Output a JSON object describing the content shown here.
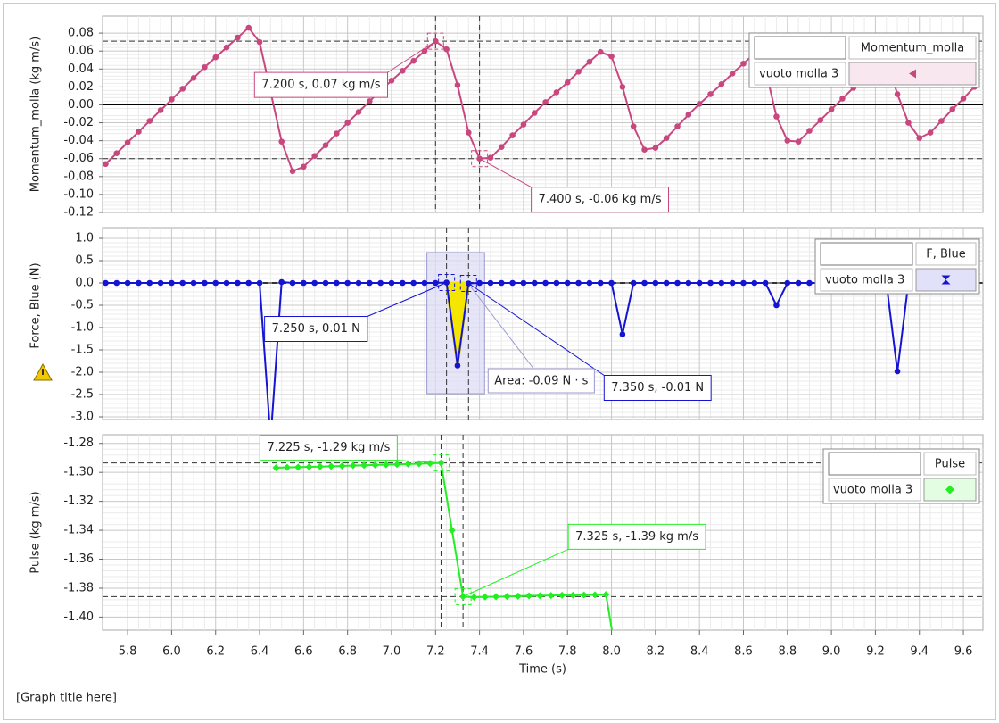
{
  "chart_data": [
    {
      "type": "line",
      "y_label": "Momentum_molla (kg m/s)",
      "legend_group": "vuoto molla 3",
      "xlim": [
        5.686,
        9.689
      ],
      "ylim": [
        -0.12,
        0.099
      ],
      "grid": true,
      "zero_line": true,
      "yticks": [
        -0.12,
        {
          "value": -0.1,
          "label": "-0.10"
        },
        -0.08,
        -0.06,
        -0.04,
        -0.02,
        {
          "value": 0,
          "label": "0.00"
        },
        0.02,
        0.04,
        0.06,
        0.08
      ],
      "x": [
        5.7,
        5.75,
        5.8,
        5.85,
        5.9,
        5.95,
        6.0,
        6.05,
        6.1,
        6.15,
        6.2,
        6.25,
        6.3,
        6.35,
        6.4,
        6.5,
        6.55,
        6.6,
        6.65,
        6.7,
        6.75,
        6.8,
        6.85,
        6.9,
        6.95,
        7.0,
        7.05,
        7.1,
        7.15,
        7.2,
        7.25,
        7.3,
        7.35,
        7.4,
        7.45,
        7.5,
        7.55,
        7.6,
        7.65,
        7.7,
        7.75,
        7.8,
        7.85,
        7.9,
        7.95,
        8.0,
        8.05,
        8.1,
        8.15,
        8.2,
        8.25,
        8.3,
        8.35,
        8.4,
        8.45,
        8.5,
        8.55,
        8.6,
        8.65,
        8.7,
        8.75,
        8.8,
        8.85,
        8.9,
        8.95,
        9.0,
        9.05,
        9.1,
        9.15,
        9.2,
        9.25,
        9.3,
        9.35,
        9.4,
        9.45,
        9.5,
        9.55,
        9.6,
        9.65
      ],
      "series": [
        {
          "name": "Momentum_molla",
          "color": "#c8477f",
          "marker": "circle",
          "values": [
            -0.066,
            -0.054,
            -0.042,
            -0.03,
            -0.018,
            -0.006,
            0.006,
            0.018,
            0.03,
            0.042,
            0.053,
            0.064,
            0.075,
            0.086,
            0.07,
            -0.041,
            -0.074,
            -0.069,
            -0.057,
            -0.045,
            -0.032,
            -0.02,
            -0.008,
            0.004,
            0.016,
            0.027,
            0.038,
            0.049,
            0.06,
            0.071,
            0.062,
            0.022,
            -0.031,
            -0.06,
            -0.059,
            -0.047,
            -0.034,
            -0.022,
            -0.009,
            0.003,
            0.014,
            0.025,
            0.037,
            0.048,
            0.059,
            0.054,
            0.02,
            -0.024,
            -0.05,
            -0.048,
            -0.037,
            -0.024,
            -0.011,
            0.001,
            0.012,
            0.023,
            0.035,
            0.046,
            0.057,
            0.04,
            -0.013,
            -0.04,
            -0.041,
            -0.029,
            -0.017,
            -0.005,
            0.007,
            0.019,
            0.03,
            0.041,
            0.051,
            0.012,
            -0.02,
            -0.037,
            -0.031,
            -0.018,
            -0.005,
            0.007,
            0.02
          ]
        }
      ],
      "annotations": [
        {
          "x": 7.2,
          "y": 0.071,
          "label": "7.200 s, 0.07 kg m/s"
        },
        {
          "x": 7.4,
          "y": -0.06,
          "label": "7.400 s, -0.06 kg m/s"
        }
      ]
    },
    {
      "type": "line",
      "y_label": "Force, Blue (N)",
      "legend_group": "vuoto molla 3",
      "xlim": [
        5.686,
        9.689
      ],
      "ylim": [
        -3.06,
        1.24
      ],
      "grid": true,
      "zero_line": true,
      "yticks": [
        {
          "value": -3,
          "label": "-3.0"
        },
        -2.5,
        {
          "value": -2,
          "label": "-2.0"
        },
        -1.5,
        {
          "value": -1,
          "label": "-1.0"
        },
        -0.5,
        {
          "value": 0,
          "label": "0.0"
        },
        0.5,
        {
          "value": 1,
          "label": "1.0"
        }
      ],
      "x": [
        5.7,
        5.75,
        5.8,
        5.85,
        5.9,
        5.95,
        6.0,
        6.05,
        6.1,
        6.15,
        6.2,
        6.25,
        6.3,
        6.35,
        6.4,
        6.45,
        6.5,
        6.55,
        6.6,
        6.65,
        6.7,
        6.75,
        6.8,
        6.85,
        6.9,
        6.95,
        7.0,
        7.05,
        7.1,
        7.15,
        7.2,
        7.25,
        7.3,
        7.35,
        7.4,
        7.45,
        7.5,
        7.55,
        7.6,
        7.65,
        7.7,
        7.75,
        7.8,
        7.85,
        7.9,
        7.95,
        8.0,
        8.05,
        8.1,
        8.15,
        8.2,
        8.25,
        8.3,
        8.35,
        8.4,
        8.45,
        8.5,
        8.55,
        8.6,
        8.65,
        8.7,
        8.75,
        8.8,
        8.85,
        8.9,
        8.95,
        9.0,
        9.05,
        9.1,
        9.15,
        9.2,
        9.25,
        9.3,
        9.35,
        9.4,
        9.45,
        9.5,
        9.55,
        9.6,
        9.65
      ],
      "series": [
        {
          "name": "F, Blue",
          "color": "#1414d2",
          "marker": "circle",
          "values": [
            0,
            0,
            0,
            0,
            0,
            0,
            0,
            0,
            0,
            0,
            0,
            0,
            0,
            0,
            0,
            -3.5,
            0.02,
            0,
            0,
            0,
            0,
            0,
            0,
            0,
            0,
            0,
            0,
            0,
            0,
            0,
            0,
            0.01,
            -1.85,
            -0.01,
            0,
            0,
            0,
            0,
            0,
            0,
            0,
            0,
            0,
            0,
            0,
            0,
            0,
            -1.15,
            0,
            0,
            0,
            0,
            0,
            0,
            0,
            0,
            0,
            0,
            0,
            0,
            0,
            -0.5,
            0,
            0,
            0,
            0,
            0,
            0,
            0,
            0,
            0,
            0,
            -1.98,
            0,
            0,
            0,
            0,
            0,
            0,
            0
          ]
        }
      ],
      "annotations": [
        {
          "x": 7.25,
          "y": 0.01,
          "label": "7.250 s, 0.01 N"
        },
        {
          "x": 7.35,
          "y": -0.01,
          "label": "7.350 s, -0.01 N"
        }
      ],
      "area": {
        "from": 7.25,
        "to": 7.35,
        "color": "#f5e600",
        "label": "Area: -0.09 N · s"
      }
    },
    {
      "type": "line",
      "y_label": "Pulse (kg m/s)",
      "x_label": "Time (s)",
      "legend_group": "vuoto molla 3",
      "xlim": [
        5.686,
        9.689
      ],
      "ylim": [
        -1.409,
        -1.274
      ],
      "grid": true,
      "xticks": [
        5.8,
        {
          "value": 6,
          "label": "6.0"
        },
        6.2,
        6.4,
        6.6,
        6.8,
        {
          "value": 7,
          "label": "7.0"
        },
        7.2,
        7.4,
        7.6,
        7.8,
        {
          "value": 8,
          "label": "8.0"
        },
        8.2,
        8.4,
        8.6,
        8.8,
        {
          "value": 9,
          "label": "9.0"
        },
        9.2,
        9.4,
        9.6
      ],
      "yticks": [
        {
          "value": -1.4,
          "label": "-1.40"
        },
        -1.38,
        -1.36,
        -1.34,
        -1.32,
        {
          "value": -1.3,
          "label": "-1.30"
        },
        -1.28
      ],
      "x": [
        6.475,
        6.525,
        6.575,
        6.625,
        6.675,
        6.725,
        6.775,
        6.825,
        6.875,
        6.925,
        6.975,
        7.025,
        7.075,
        7.125,
        7.175,
        7.225,
        7.275,
        7.325,
        7.375,
        7.425,
        7.475,
        7.525,
        7.575,
        7.625,
        7.675,
        7.725,
        7.775,
        7.825,
        7.875,
        7.925,
        7.975,
        8.025
      ],
      "series": [
        {
          "name": "Pulse",
          "color": "#22ee22",
          "marker": "diamond",
          "values": [
            -1.2968,
            -1.2966,
            -1.2964,
            -1.2962,
            -1.296,
            -1.2958,
            -1.2956,
            -1.2953,
            -1.2951,
            -1.2949,
            -1.2947,
            -1.2945,
            -1.2943,
            -1.294,
            -1.2938,
            -1.2935,
            -1.34,
            -1.3858,
            -1.3862,
            -1.386,
            -1.3859,
            -1.3857,
            -1.3855,
            -1.3853,
            -1.3852,
            -1.385,
            -1.3849,
            -1.3848,
            -1.3847,
            -1.3846,
            -1.3844,
            -1.43
          ]
        }
      ],
      "annotations": [
        {
          "x": 7.225,
          "y": -1.2935,
          "label": "7.225 s, -1.29 kg m/s"
        },
        {
          "x": 7.325,
          "y": -1.3858,
          "label": "7.325 s, -1.39 kg m/s"
        }
      ]
    }
  ],
  "footer": "[Graph title here]"
}
